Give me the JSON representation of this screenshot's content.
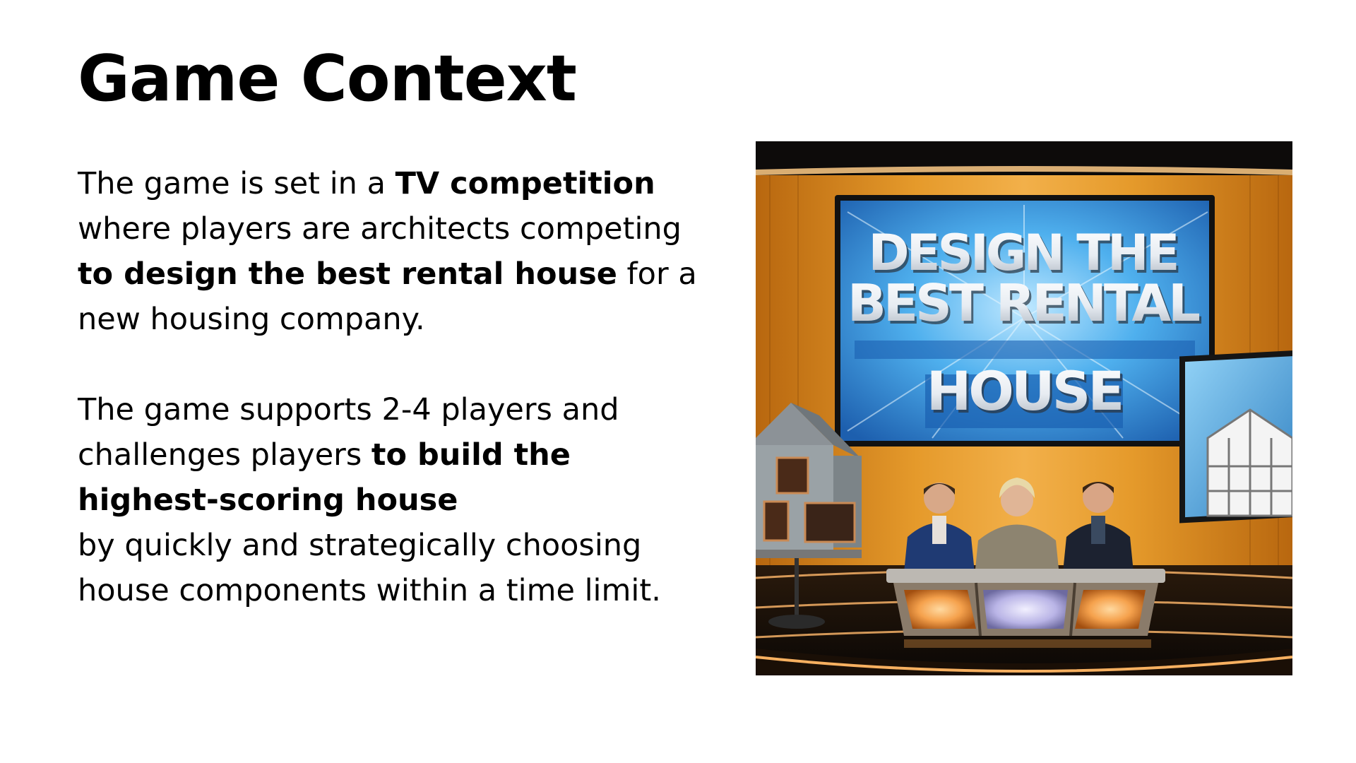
{
  "slide": {
    "title": "Game Context",
    "paragraphs": [
      {
        "runs": [
          {
            "text": "The game is set in a ",
            "bold": false
          },
          {
            "text": "TV competition",
            "bold": true
          },
          {
            "text": " where players are architects competing ",
            "bold": false
          },
          {
            "text": "to design the best rental house",
            "bold": true
          },
          {
            "text": " for a new housing company.",
            "bold": false
          }
        ]
      },
      {
        "runs": [
          {
            "text": "The game supports 2-4 players and challenges players ",
            "bold": false
          },
          {
            "text": "to build the highest-scoring house",
            "bold": true
          },
          {
            "text": "\nby quickly and strategically choosing house components within a time limit.",
            "bold": false
          }
        ]
      }
    ]
  },
  "image": {
    "screen_lines": [
      "DESIGN THE",
      "BEST RENTAL",
      "HOUSE"
    ],
    "colors": {
      "backdrop_orange": "#d98a1c",
      "screen_blue": "#3c9fe0",
      "floor_dark": "#120d08",
      "desk_glow": "#f0a04a",
      "desk_center_glow": "#b9b4e6"
    }
  }
}
